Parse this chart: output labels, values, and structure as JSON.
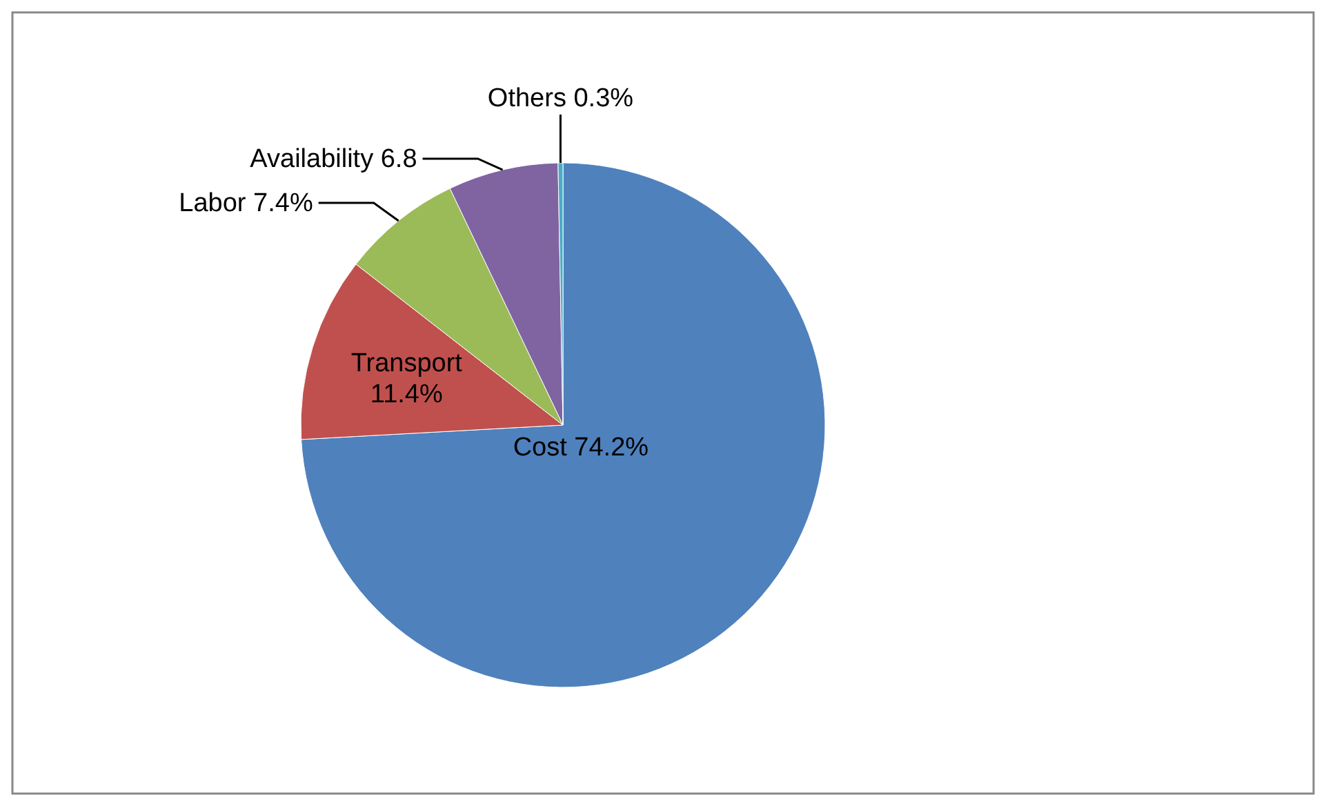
{
  "chart_data": {
    "type": "pie",
    "categories": [
      "Cost",
      "Transport",
      "Labor",
      "Availability",
      "Others"
    ],
    "values": [
      74.2,
      11.4,
      7.4,
      6.8,
      0.3
    ],
    "colors": [
      "#4f81bd",
      "#c0504d",
      "#9bbb59",
      "#8064a2",
      "#4bacc6"
    ],
    "value_labels": [
      "74.2%",
      "11.4%",
      "7.4%",
      "6.8",
      "0.3%"
    ]
  }
}
